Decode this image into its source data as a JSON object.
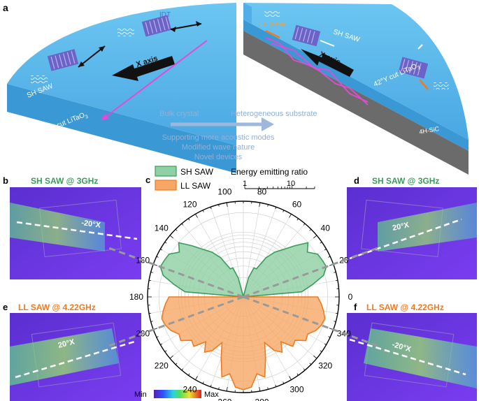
{
  "panels": {
    "a": {
      "letter": "a",
      "labels": {
        "idt": "IDT",
        "sh_saw_left_top": "SH SAW",
        "sh_saw_left_bottom": "SH SAW",
        "x_axis_left": "X axis",
        "crystal_left": "42°Y cut LiTaO",
        "crystal_sub": "3",
        "ll_saw": "LL SAW",
        "sh_saw_right": "SH SAW",
        "x_axis_right": "X axis",
        "crystal_right": "42°Y cut LiTaO",
        "substrate": "4H-SiC"
      },
      "transition": {
        "from": "Bulk crystal",
        "to": "Heterogeneous substrate",
        "benefits": [
          "Supporting more acoustic modes",
          "Modified wave nature",
          "Novel devices"
        ]
      }
    },
    "b": {
      "letter": "b",
      "title": "SH SAW @ 3GHz",
      "angle": "-20°X"
    },
    "d": {
      "letter": "d",
      "title": "SH SAW @ 3GHz",
      "angle": "20°X"
    },
    "e": {
      "letter": "e",
      "title": "LL SAW @ 4.22GHz",
      "angle": "20°X"
    },
    "f": {
      "letter": "f",
      "title": "LL SAW @ 4.22GHz",
      "angle": "-20°X"
    },
    "c": {
      "letter": "c"
    },
    "colorbar": {
      "min_label": "Min",
      "max_label": "Max"
    }
  },
  "colors": {
    "sh": "#3a9c5a",
    "sh_fill": "#8fd0a4",
    "ll": "#f07a20",
    "ll_fill": "#f6a766",
    "crystal": "#5cb8ec",
    "sic": "#6b6b6b",
    "magenta": "#e24bd6",
    "arrow_blue": "#9db8dc"
  },
  "chart_data": {
    "type": "polar",
    "title": "",
    "legend": [
      "SH SAW",
      "LL SAW"
    ],
    "scale_title": "Energy emitting ratio",
    "scale_ticks": [
      "1",
      "10"
    ],
    "radial_scale": "log",
    "angle_ticks": [
      "0",
      "20",
      "40",
      "60",
      "80",
      "100",
      "120",
      "140",
      "160",
      "180",
      "200",
      "220",
      "240",
      "260",
      "280",
      "300",
      "320",
      "340"
    ],
    "series": [
      {
        "name": "SH SAW",
        "angles_deg": [
          0,
          5,
          10,
          15,
          20,
          25,
          30,
          35,
          40,
          45,
          50,
          55,
          60,
          65,
          70,
          75,
          80,
          85,
          90,
          95,
          100,
          105,
          110,
          115,
          120,
          125,
          130,
          135,
          140,
          145,
          150,
          155,
          160,
          165,
          170,
          175,
          180
        ],
        "values": [
          1,
          8,
          12,
          19,
          23,
          22,
          21,
          16,
          20,
          13,
          9,
          7,
          5,
          3,
          3,
          2,
          1,
          1,
          1,
          1,
          1,
          2,
          3,
          3,
          5,
          7,
          9,
          13,
          20,
          16,
          21,
          22,
          23,
          19,
          12,
          8,
          1
        ]
      },
      {
        "name": "LL SAW",
        "angles_deg": [
          180,
          185,
          190,
          195,
          200,
          205,
          210,
          215,
          220,
          225,
          230,
          235,
          240,
          245,
          250,
          255,
          260,
          265,
          270,
          275,
          280,
          285,
          290,
          295,
          300,
          305,
          310,
          315,
          320,
          325,
          330,
          335,
          340,
          345,
          350,
          355,
          360
        ],
        "values": [
          14,
          16,
          18,
          20,
          19,
          17,
          14,
          15,
          11,
          12,
          8,
          11,
          9,
          6,
          10,
          19,
          16,
          25,
          27,
          25,
          16,
          19,
          10,
          6,
          9,
          11,
          8,
          12,
          11,
          15,
          14,
          17,
          19,
          20,
          18,
          16,
          14
        ]
      }
    ],
    "dashed_directions_deg": [
      20,
      160,
      200,
      340
    ]
  }
}
